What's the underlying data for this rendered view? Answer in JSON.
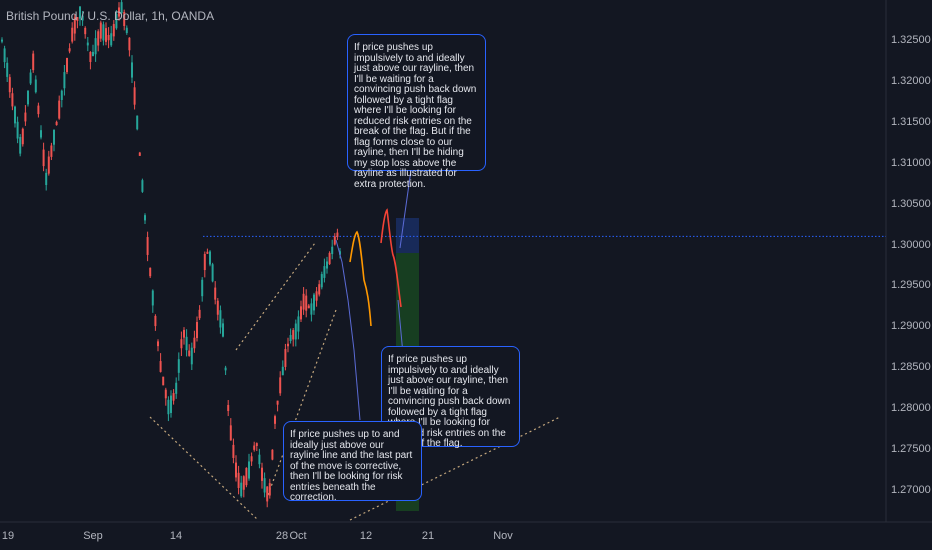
{
  "header": {
    "title": "British Pound / U.S. Dollar, 1h, OANDA"
  },
  "chart_data": {
    "type": "candlestick",
    "symbol": "GBPUSD",
    "timeframe": "1h",
    "ylim": [
      1.266,
      1.329
    ],
    "y_ticks": [
      "1.32500",
      "1.32000",
      "1.31500",
      "1.31000",
      "1.30500",
      "1.30000",
      "1.29500",
      "1.29000",
      "1.28500",
      "1.28000",
      "1.27500",
      "1.27000"
    ],
    "x_ticks": [
      "19",
      "Sep",
      "14",
      "28",
      "Oct",
      "12",
      "21",
      "Nov"
    ],
    "rayline_level": 1.301,
    "colors": {
      "up": "#26a69a",
      "down": "#ef5350",
      "rayline": "#2962ff",
      "trendline": "#c4a77d",
      "projection_orange": "#ff9800",
      "projection_red": "#f44336"
    }
  },
  "annotations": {
    "note_top": "If price pushes up impulsively to and ideally just above our rayline, then I'll be waiting for a convincing push back down followed by a tight flag where I'll be looking for reduced risk entries on the break of the flag. But if the flag forms close to our rayline, then I'll be hiding my stop loss above the rayline as illustrated for extra protection.",
    "note_right": "If price pushes up impulsively to and ideally just above our rayline, then I'll be waiting for a convincing push back down followed by a tight flag where I'll be looking for reduced risk entries on the break of the flag.",
    "note_bottom": "If price pushes up to and ideally just above our rayline line and the last part of the move is corrective, then I'll be looking for risk entries beneath the correction."
  }
}
